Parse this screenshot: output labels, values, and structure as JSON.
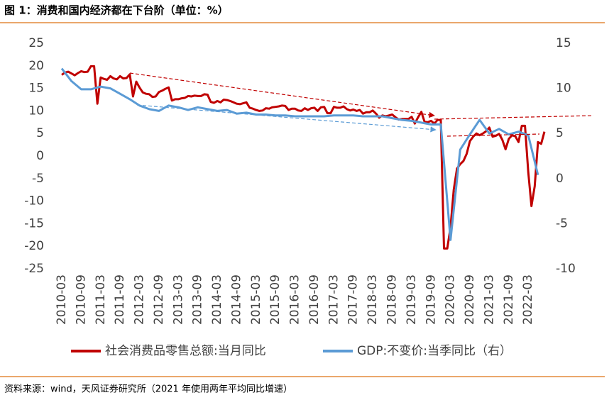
{
  "chart_data": {
    "type": "line",
    "title": "图 1：消费和国内经济都在下台阶（单位：%）",
    "source": "资料来源：wind，天风证券研究所（2021 年使用两年平均同比增速）",
    "categories": [
      "2010-03",
      null,
      null,
      null,
      null,
      null,
      "2010-09",
      null,
      null,
      null,
      null,
      null,
      "2011-03",
      null,
      null,
      null,
      null,
      null,
      "2011-09",
      null,
      null,
      null,
      null,
      null,
      "2012-03",
      null,
      null,
      null,
      null,
      null,
      "2012-09",
      null,
      null,
      null,
      null,
      null,
      "2013-03",
      null,
      null,
      null,
      null,
      null,
      "2013-09",
      null,
      null,
      null,
      null,
      null,
      "2014-03",
      null,
      null,
      null,
      null,
      null,
      "2014-09",
      null,
      null,
      null,
      null,
      null,
      "2015-03",
      null,
      null,
      null,
      null,
      null,
      "2015-09",
      null,
      null,
      null,
      null,
      null,
      "2016-03",
      null,
      null,
      null,
      null,
      null,
      "2016-09",
      null,
      null,
      null,
      null,
      null,
      "2017-03",
      null,
      null,
      null,
      null,
      null,
      "2017-09",
      null,
      null,
      null,
      null,
      null,
      "2018-03",
      null,
      null,
      null,
      null,
      null,
      "2018-09",
      null,
      null,
      null,
      null,
      null,
      "2019-03",
      null,
      null,
      null,
      null,
      null,
      "2019-09",
      null,
      null,
      null,
      null,
      null,
      "2020-03",
      null,
      null,
      null,
      null,
      null,
      "2020-09",
      null,
      null,
      null,
      null,
      null,
      "2021-03",
      null,
      null,
      null,
      null,
      null,
      "2021-09",
      null,
      null,
      null,
      null,
      null,
      "2022-03",
      null,
      null,
      null,
      null,
      null
    ],
    "series": [
      {
        "name": "社会消费品零售总额:当月同比",
        "color": "#c00000",
        "axis": "y",
        "values": [
          18.0,
          18.5,
          18.7,
          18.3,
          17.9,
          18.4,
          18.8,
          18.6,
          18.7,
          19.9,
          19.9,
          11.6,
          17.4,
          17.1,
          16.9,
          17.7,
          17.2,
          17.0,
          17.7,
          17.2,
          17.3,
          18.1,
          13.2,
          16.5,
          15.2,
          14.1,
          13.8,
          13.7,
          13.1,
          13.2,
          14.2,
          14.5,
          14.9,
          15.2,
          12.3,
          12.6,
          12.6,
          12.8,
          12.9,
          13.3,
          13.2,
          13.4,
          13.3,
          13.3,
          13.7,
          13.6,
          12.0,
          11.8,
          12.2,
          11.9,
          12.5,
          12.4,
          12.2,
          11.9,
          11.6,
          11.5,
          11.7,
          11.9,
          10.7,
          10.5,
          10.2,
          10.0,
          10.1,
          10.6,
          10.5,
          10.8,
          10.9,
          11.0,
          11.2,
          11.1,
          10.2,
          10.5,
          10.5,
          10.1,
          10.0,
          10.6,
          10.2,
          10.6,
          10.7,
          10.0,
          10.8,
          10.9,
          9.5,
          9.5,
          10.9,
          10.7,
          10.7,
          11.0,
          10.4,
          10.1,
          10.3,
          10.0,
          10.2,
          9.4,
          9.7,
          9.7,
          10.1,
          9.4,
          8.5,
          9.0,
          8.8,
          9.0,
          9.2,
          8.6,
          8.1,
          8.2,
          8.2,
          8.2,
          8.7,
          7.2,
          8.6,
          9.8,
          7.6,
          7.5,
          7.8,
          7.2,
          8.0,
          8.0,
          -20.5,
          -20.5,
          -15.8,
          -7.5,
          -2.8,
          -1.8,
          -1.1,
          0.5,
          3.3,
          4.3,
          5.0,
          4.6,
          5.0,
          5.5,
          6.3,
          4.3,
          4.5,
          4.9,
          3.6,
          1.5,
          3.8,
          4.6,
          4.4,
          3.1,
          6.7,
          6.7,
          -3.5,
          -11.1,
          -6.7,
          3.1,
          2.7,
          5.4
        ]
      },
      {
        "name": "GDP:不变价:当季同比（右）",
        "color": "#5b9bd5",
        "axis": "y2",
        "values": [
          12.2,
          null,
          null,
          10.8,
          null,
          null,
          9.9,
          null,
          null,
          9.9,
          null,
          null,
          10.2,
          null,
          null,
          10.0,
          null,
          null,
          9.4,
          null,
          null,
          8.8,
          null,
          null,
          8.1,
          null,
          null,
          7.7,
          null,
          null,
          7.5,
          null,
          null,
          8.1,
          null,
          null,
          7.9,
          null,
          null,
          7.6,
          null,
          null,
          7.9,
          null,
          null,
          7.7,
          null,
          null,
          7.5,
          null,
          null,
          7.6,
          null,
          null,
          7.2,
          null,
          null,
          7.3,
          null,
          null,
          7.1,
          null,
          null,
          7.1,
          null,
          null,
          7.0,
          null,
          null,
          7.0,
          null,
          null,
          6.9,
          null,
          null,
          6.9,
          null,
          null,
          6.9,
          null,
          null,
          6.9,
          null,
          null,
          7.0,
          null,
          null,
          7.0,
          null,
          null,
          7.0,
          null,
          null,
          6.9,
          null,
          null,
          6.9,
          null,
          null,
          6.9,
          null,
          null,
          6.7,
          null,
          null,
          6.5,
          null,
          null,
          6.4,
          null,
          null,
          6.2,
          null,
          null,
          6.0,
          null,
          null,
          6.0,
          null,
          null,
          -6.8,
          null,
          null,
          3.2,
          null,
          null,
          4.9,
          null,
          null,
          6.5,
          null,
          null,
          5.0,
          null,
          null,
          5.5,
          null,
          null,
          4.9,
          null,
          null,
          5.2,
          null,
          null,
          4.8,
          null,
          null,
          0.4,
          null,
          null
        ]
      }
    ],
    "ylim": [
      -25,
      25
    ],
    "yticks": [
      -25,
      -20,
      -15,
      -10,
      -5,
      0,
      5,
      10,
      15,
      20,
      25
    ],
    "y2lim": [
      -10,
      15
    ],
    "y2ticks": [
      -10,
      -5,
      0,
      5,
      10,
      15
    ],
    "grid": false
  }
}
